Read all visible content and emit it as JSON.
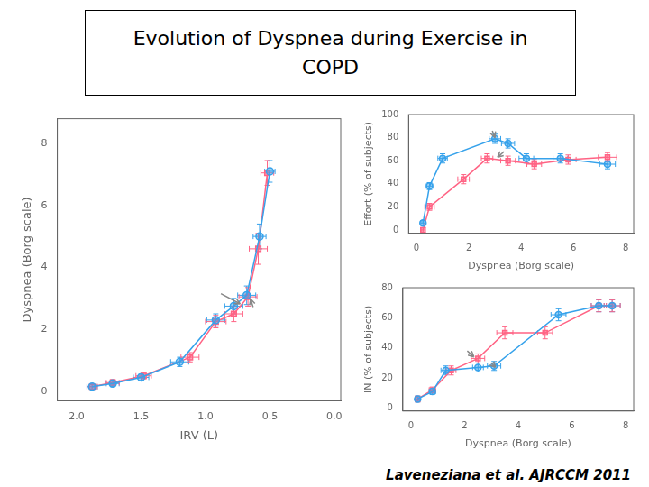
{
  "title": [
    "Evolution of Dyspnea during Exercise in",
    "COPD"
  ],
  "annotations": [
    {
      "text": "Laveneziana et al. AJRCCM 2011"
    }
  ],
  "chart_data": [
    {
      "type": "line",
      "xlabel": "IRV (L)",
      "ylabel": "Dyspnea (Borg scale)",
      "xlim": [
        2.15,
        -0.05
      ],
      "ylim": [
        -0.3,
        8.8
      ],
      "xticks": [
        {
          "value": 2.0,
          "label": "2.0"
        },
        1.5,
        {
          "value": 1.0,
          "label": "1.0"
        },
        0.5,
        {
          "value": 0.0,
          "label": "0.0"
        }
      ],
      "yticks": [
        0,
        2,
        4,
        6,
        8
      ],
      "grid": false,
      "series": [
        {
          "marker": "circle",
          "x": [
            1.88,
            1.72,
            1.5,
            1.2,
            0.92,
            0.78,
            0.68,
            0.58,
            0.5
          ],
          "values": [
            0.15,
            0.25,
            0.45,
            0.95,
            2.3,
            2.75,
            3.1,
            5.0,
            7.1
          ],
          "xerr": [
            0.04,
            0.05,
            0.06,
            0.07,
            0.07,
            0.07,
            0.07,
            0.05,
            0.04
          ],
          "yerr": [
            0.08,
            0.1,
            0.1,
            0.15,
            0.2,
            0.25,
            0.3,
            0.4,
            0.35
          ]
        },
        {
          "marker": "square",
          "x": [
            1.88,
            1.72,
            1.48,
            1.12,
            0.92,
            0.78,
            0.67,
            0.59,
            0.52
          ],
          "values": [
            0.15,
            0.28,
            0.5,
            1.1,
            2.25,
            2.5,
            3.05,
            4.6,
            7.05
          ],
          "xerr": [
            0.04,
            0.05,
            0.06,
            0.07,
            0.08,
            0.07,
            0.07,
            0.07,
            0.05
          ],
          "yerr": [
            0.08,
            0.1,
            0.1,
            0.15,
            0.2,
            0.25,
            0.3,
            0.5,
            0.4
          ]
        }
      ],
      "annotations": [
        {
          "type": "arrow",
          "x0": 0.88,
          "y0": 3.15,
          "x1": 0.73,
          "y1": 2.82,
          "color": "#888888"
        },
        {
          "type": "arrow",
          "x0": 0.63,
          "y0": 2.72,
          "x1": 0.65,
          "y1": 2.98,
          "color": "#888888"
        }
      ]
    },
    {
      "type": "line",
      "xlabel": "Dyspnea (Borg scale)",
      "ylabel": "Effort (% of subjects)",
      "xlim": [
        -0.3,
        8.3
      ],
      "ylim": [
        -3,
        100
      ],
      "xticks": [
        0,
        2,
        4,
        6,
        8
      ],
      "yticks": [
        0,
        20,
        40,
        60,
        80,
        100
      ],
      "grid": false,
      "series": [
        {
          "marker": "circle",
          "x": [
            0.25,
            0.5,
            1.0,
            3.0,
            3.5,
            4.2,
            5.5,
            7.3
          ],
          "values": [
            6,
            38,
            62,
            79,
            75,
            62,
            62,
            57
          ],
          "xerr": [
            0.08,
            0.12,
            0.18,
            0.22,
            0.25,
            0.28,
            0.28,
            0.3
          ],
          "yerr": [
            2,
            3,
            4,
            4,
            4,
            4,
            4,
            4
          ]
        },
        {
          "marker": "square",
          "x": [
            0.25,
            0.5,
            1.8,
            2.7,
            3.5,
            4.5,
            5.8,
            7.3
          ],
          "values": [
            0,
            20,
            44,
            62,
            60,
            57,
            61,
            63
          ],
          "xerr": [
            0.08,
            0.18,
            0.22,
            0.22,
            0.28,
            0.28,
            0.3,
            0.35
          ],
          "yerr": [
            2,
            3,
            4,
            4,
            4,
            4,
            4,
            4
          ]
        }
      ],
      "annotations": [
        {
          "type": "arrow",
          "x0": 2.9,
          "y0": 86,
          "x1": 3.0,
          "y1": 80,
          "color": "#888888"
        },
        {
          "type": "arrow",
          "x0": 3.35,
          "y0": 68,
          "x1": 3.1,
          "y1": 63,
          "color": "#888888"
        }
      ]
    },
    {
      "type": "line",
      "xlabel": "Dyspnea (Borg scale)",
      "ylabel": "IN (% of subjects)",
      "xlim": [
        -0.3,
        8.3
      ],
      "ylim": [
        -2,
        80
      ],
      "xticks": [
        0,
        2,
        4,
        6,
        8
      ],
      "yticks": [
        0,
        20,
        40,
        60,
        80
      ],
      "grid": false,
      "series": [
        {
          "marker": "circle",
          "x": [
            0.25,
            0.8,
            1.3,
            2.5,
            3.1,
            5.5,
            7.0,
            7.5
          ],
          "values": [
            6,
            11,
            25,
            27,
            28,
            62,
            68,
            68
          ],
          "xerr": [
            0.08,
            0.12,
            0.18,
            0.2,
            0.25,
            0.28,
            0.28,
            0.3
          ],
          "yerr": [
            2,
            2,
            3,
            3,
            3,
            4,
            4,
            4
          ]
        },
        {
          "marker": "square",
          "x": [
            0.25,
            0.8,
            1.5,
            2.5,
            3.5,
            5.0,
            7.0,
            7.5
          ],
          "values": [
            6,
            12,
            25,
            33,
            50,
            50,
            68,
            68
          ],
          "xerr": [
            0.08,
            0.12,
            0.18,
            0.25,
            0.3,
            0.28,
            0.28,
            0.3
          ],
          "yerr": [
            2,
            2,
            3,
            3,
            4,
            4,
            4,
            4
          ]
        }
      ],
      "annotations": [
        {
          "type": "arrow",
          "x0": 2.1,
          "y0": 38,
          "x1": 2.35,
          "y1": 34,
          "color": "#888888"
        },
        {
          "type": "arrow",
          "x0": 3.0,
          "y0": 30,
          "x1": 3.15,
          "y1": 27,
          "color": "#888888"
        }
      ]
    }
  ]
}
